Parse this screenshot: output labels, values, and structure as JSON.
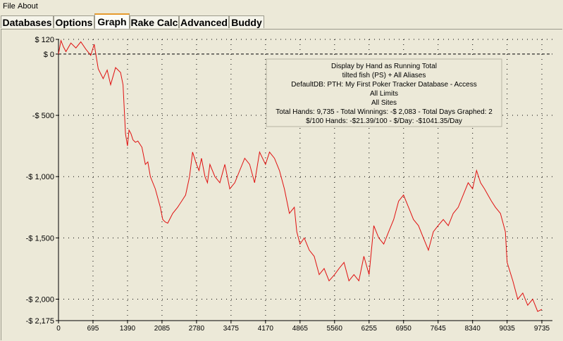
{
  "menu": {
    "file": "File",
    "about": "About"
  },
  "tabs": [
    {
      "label": "Databases",
      "active": false
    },
    {
      "label": "Options",
      "active": false
    },
    {
      "label": "Graph",
      "active": true
    },
    {
      "label": "Rake Calc",
      "active": false
    },
    {
      "label": "Advanced",
      "active": false
    },
    {
      "label": "Buddy",
      "active": false
    }
  ],
  "info": {
    "line1": "Display by Hand as Running Total",
    "line2": "tilted fish (PS) + All Aliases",
    "line3": "DefaultDB: PTH: My First Poker Tracker Database - Access",
    "line4": "All Limits",
    "line5": "All Sites",
    "line6": "Total Hands: 9,735 - Total Winnings: -$ 2,083 - Total Days Graphed: 2",
    "line7": "$/100 Hands: -$21.39/100 - $/Day: -$1041.35/Day"
  },
  "colors": {
    "line": "#e01010",
    "grid": "#000000",
    "background": "#ece9d8"
  },
  "chart_data": {
    "type": "line",
    "title": "",
    "xlabel": "",
    "ylabel": "",
    "xlim": [
      0,
      9735
    ],
    "ylim": [
      -2175,
      120
    ],
    "y_ticks": [
      {
        "value": 120,
        "label": "$ 120"
      },
      {
        "value": 0,
        "label": "$ 0"
      },
      {
        "value": -500,
        "label": "-$ 500"
      },
      {
        "value": -1000,
        "label": "-$ 1,000"
      },
      {
        "value": -1500,
        "label": "-$ 1,500"
      },
      {
        "value": -2000,
        "label": "-$ 2,000"
      },
      {
        "value": -2175,
        "label": "-$ 2,175"
      }
    ],
    "x_ticks": [
      {
        "value": 0,
        "label": "0"
      },
      {
        "value": 695,
        "label": "695"
      },
      {
        "value": 1390,
        "label": "1390"
      },
      {
        "value": 2085,
        "label": "2085"
      },
      {
        "value": 2780,
        "label": "2780"
      },
      {
        "value": 3475,
        "label": "3475"
      },
      {
        "value": 4170,
        "label": "4170"
      },
      {
        "value": 4865,
        "label": "4865"
      },
      {
        "value": 5560,
        "label": "5560"
      },
      {
        "value": 6255,
        "label": "6255"
      },
      {
        "value": 6950,
        "label": "6950"
      },
      {
        "value": 7645,
        "label": "7645"
      },
      {
        "value": 8340,
        "label": "8340"
      },
      {
        "value": 9035,
        "label": "9035"
      },
      {
        "value": 9735,
        "label": "9735"
      }
    ],
    "grid": true,
    "series": [
      {
        "x": [
          0,
          50,
          100,
          150,
          250,
          350,
          450,
          550,
          650,
          720,
          800,
          900,
          980,
          1050,
          1100,
          1150,
          1250,
          1300,
          1350,
          1390,
          1420,
          1460,
          1500,
          1550,
          1600,
          1680,
          1750,
          1800,
          1850,
          1950,
          2050,
          2100,
          2150,
          2200,
          2300,
          2400,
          2480,
          2560,
          2640,
          2700,
          2780,
          2830,
          2880,
          2950,
          3000,
          3050,
          3150,
          3250,
          3350,
          3450,
          3550,
          3650,
          3750,
          3850,
          3950,
          4050,
          4170,
          4250,
          4350,
          4450,
          4550,
          4650,
          4750,
          4800,
          4865,
          4950,
          5050,
          5150,
          5250,
          5350,
          5450,
          5560,
          5650,
          5750,
          5850,
          5950,
          6050,
          6150,
          6255,
          6350,
          6450,
          6550,
          6650,
          6750,
          6850,
          6950,
          7050,
          7150,
          7250,
          7350,
          7450,
          7550,
          7645,
          7750,
          7850,
          7950,
          8050,
          8150,
          8250,
          8340,
          8420,
          8500,
          8580,
          8650,
          8720,
          8800,
          8900,
          9000,
          9035,
          9150,
          9250,
          9350,
          9450,
          9550,
          9650,
          9735
        ],
        "y": [
          0,
          110,
          60,
          20,
          90,
          50,
          100,
          40,
          -10,
          80,
          -120,
          -200,
          -130,
          -250,
          -180,
          -110,
          -150,
          -250,
          -650,
          -750,
          -620,
          -650,
          -700,
          -720,
          -710,
          -760,
          -900,
          -880,
          -1000,
          -1100,
          -1250,
          -1350,
          -1370,
          -1380,
          -1300,
          -1250,
          -1200,
          -1150,
          -1000,
          -800,
          -900,
          -950,
          -850,
          -1000,
          -1050,
          -900,
          -1000,
          -1050,
          -900,
          -1100,
          -1050,
          -950,
          -850,
          -900,
          -1050,
          -800,
          -900,
          -800,
          -850,
          -950,
          -1100,
          -1300,
          -1250,
          -1450,
          -1550,
          -1500,
          -1600,
          -1650,
          -1800,
          -1750,
          -1850,
          -1800,
          -1750,
          -1700,
          -1850,
          -1800,
          -1850,
          -1650,
          -1800,
          -1400,
          -1500,
          -1550,
          -1450,
          -1350,
          -1200,
          -1150,
          -1250,
          -1350,
          -1400,
          -1500,
          -1600,
          -1450,
          -1400,
          -1350,
          -1400,
          -1300,
          -1250,
          -1150,
          -1050,
          -1100,
          -950,
          -1050,
          -1100,
          -1150,
          -1200,
          -1250,
          -1300,
          -1450,
          -1700,
          -1850,
          -2000,
          -1950,
          -2050,
          -2000,
          -2100,
          -2083
        ]
      }
    ]
  }
}
